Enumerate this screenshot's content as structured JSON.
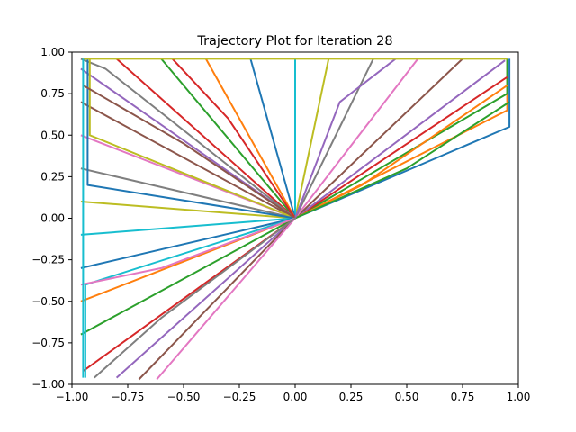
{
  "chart_data": {
    "type": "line",
    "title": "Trajectory Plot for Iteration 28",
    "xlabel": "",
    "ylabel": "",
    "xlim": [
      -1.0,
      1.0
    ],
    "ylim": [
      -1.0,
      1.0
    ],
    "grid": false,
    "legend": "none",
    "x_ticks": [
      "−1.00",
      "−0.75",
      "−0.50",
      "−0.25",
      "0.00",
      "0.25",
      "0.50",
      "0.75",
      "1.00"
    ],
    "y_ticks": [
      "−1.00",
      "−0.75",
      "−0.50",
      "−0.25",
      "0.00",
      "0.25",
      "0.50",
      "0.75",
      "1.00"
    ],
    "palette": [
      "#1f77b4",
      "#ff7f0e",
      "#2ca02c",
      "#d62728",
      "#9467bd",
      "#8c564b",
      "#e377c2",
      "#7f7f7f",
      "#bcbd22",
      "#17becf"
    ],
    "series": [
      {
        "x": [
          0.0,
          0.96,
          0.96
        ],
        "y": [
          0.0,
          0.55,
          0.96
        ]
      },
      {
        "x": [
          0.0,
          0.95,
          0.95
        ],
        "y": [
          0.0,
          0.65,
          0.96
        ]
      },
      {
        "x": [
          0.0,
          0.95,
          0.95
        ],
        "y": [
          0.0,
          0.75,
          0.96
        ]
      },
      {
        "x": [
          0.0,
          0.95
        ],
        "y": [
          0.0,
          0.85
        ]
      },
      {
        "x": [
          0.0,
          0.94
        ],
        "y": [
          0.0,
          0.95
        ]
      },
      {
        "x": [
          0.0,
          0.75
        ],
        "y": [
          0.0,
          0.96
        ]
      },
      {
        "x": [
          0.0,
          0.55
        ],
        "y": [
          0.0,
          0.96
        ]
      },
      {
        "x": [
          0.0,
          0.35
        ],
        "y": [
          0.0,
          0.96
        ]
      },
      {
        "x": [
          0.0,
          0.15
        ],
        "y": [
          0.0,
          0.96
        ]
      },
      {
        "x": [
          0.0,
          0.0
        ],
        "y": [
          0.0,
          0.96
        ]
      },
      {
        "x": [
          0.0,
          -0.2
        ],
        "y": [
          0.0,
          0.96
        ]
      },
      {
        "x": [
          0.0,
          -0.4
        ],
        "y": [
          0.0,
          0.96
        ]
      },
      {
        "x": [
          0.0,
          -0.6
        ],
        "y": [
          0.0,
          0.96
        ]
      },
      {
        "x": [
          0.0,
          -0.8
        ],
        "y": [
          0.0,
          0.96
        ]
      },
      {
        "x": [
          0.0,
          -0.96
        ],
        "y": [
          0.0,
          0.9
        ]
      },
      {
        "x": [
          0.0,
          -0.96
        ],
        "y": [
          0.0,
          0.7
        ]
      },
      {
        "x": [
          0.0,
          -0.96
        ],
        "y": [
          0.0,
          0.5
        ]
      },
      {
        "x": [
          0.0,
          -0.96
        ],
        "y": [
          0.0,
          0.3
        ]
      },
      {
        "x": [
          0.0,
          -0.96
        ],
        "y": [
          0.0,
          0.1
        ]
      },
      {
        "x": [
          0.0,
          -0.96
        ],
        "y": [
          0.0,
          -0.1
        ]
      },
      {
        "x": [
          0.0,
          -0.96
        ],
        "y": [
          0.0,
          -0.3
        ]
      },
      {
        "x": [
          0.0,
          -0.96
        ],
        "y": [
          0.0,
          -0.5
        ]
      },
      {
        "x": [
          0.0,
          -0.96
        ],
        "y": [
          0.0,
          -0.7
        ]
      },
      {
        "x": [
          0.0,
          -0.95
        ],
        "y": [
          0.0,
          -0.92
        ]
      },
      {
        "x": [
          0.0,
          -0.8
        ],
        "y": [
          0.0,
          -0.96
        ]
      },
      {
        "x": [
          0.0,
          -0.7
        ],
        "y": [
          0.0,
          -0.97
        ]
      },
      {
        "x": [
          0.0,
          -0.62
        ],
        "y": [
          0.0,
          -0.97
        ]
      },
      {
        "x": [
          0.0,
          -0.85,
          -0.96
        ],
        "y": [
          0.0,
          0.9,
          0.96
        ]
      },
      {
        "x": [
          0.0,
          -0.92,
          -0.92
        ],
        "y": [
          0.0,
          0.5,
          0.96
        ]
      },
      {
        "x": [
          0.0,
          -0.94,
          -0.94
        ],
        "y": [
          0.0,
          -0.4,
          -0.96
        ]
      },
      {
        "x": [
          0.0,
          -0.93,
          -0.93
        ],
        "y": [
          0.0,
          0.2,
          0.96
        ]
      },
      {
        "x": [
          0.0,
          0.3,
          0.95
        ],
        "y": [
          0.0,
          0.2,
          0.8
        ]
      },
      {
        "x": [
          0.0,
          0.5,
          0.96
        ],
        "y": [
          0.0,
          0.3,
          0.7
        ]
      },
      {
        "x": [
          0.0,
          -0.3,
          -0.55
        ],
        "y": [
          0.0,
          0.6,
          0.96
        ]
      },
      {
        "x": [
          0.0,
          0.2,
          0.45
        ],
        "y": [
          0.0,
          0.7,
          0.96
        ]
      },
      {
        "x": [
          0.0,
          -0.5,
          -0.95
        ],
        "y": [
          0.0,
          0.45,
          0.8
        ]
      },
      {
        "x": [
          0.0,
          -0.6,
          -0.96
        ],
        "y": [
          0.0,
          -0.3,
          -0.4
        ]
      },
      {
        "x": [
          0.0,
          -0.6,
          -0.9
        ],
        "y": [
          0.0,
          -0.6,
          -0.96
        ]
      },
      {
        "x": [
          -0.95,
          0.95
        ],
        "y": [
          0.96,
          0.96
        ]
      },
      {
        "x": [
          -0.95,
          -0.95
        ],
        "y": [
          0.96,
          -0.96
        ]
      }
    ]
  }
}
